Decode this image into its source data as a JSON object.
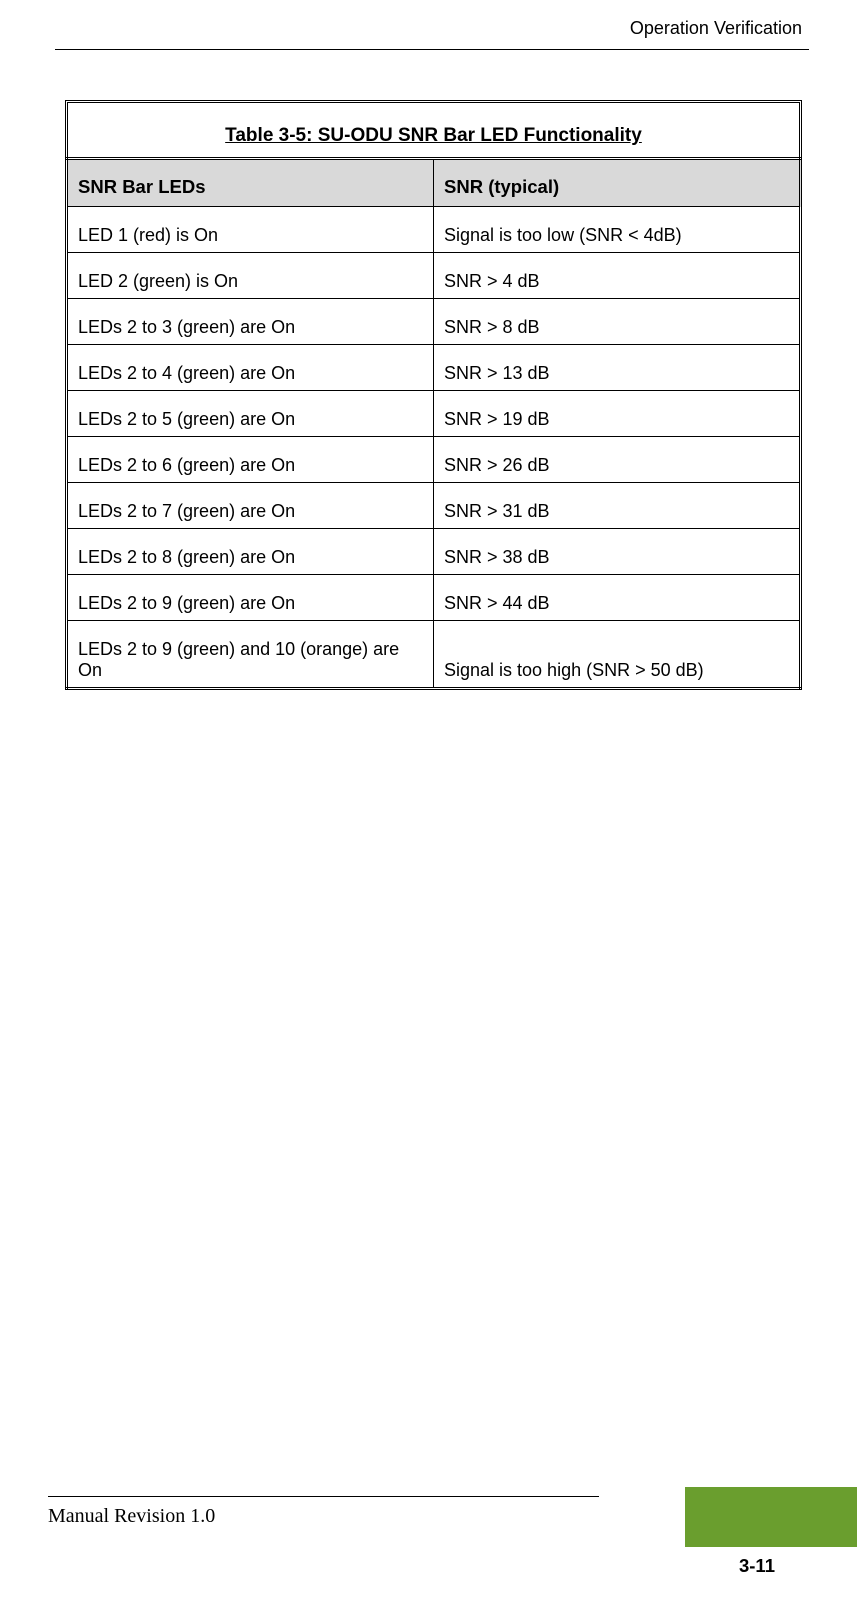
{
  "header": {
    "section_title": "Operation Verification"
  },
  "table": {
    "type": "table",
    "caption": "Table 3-5: SU-ODU SNR Bar LED Functionality",
    "columns": [
      "SNR Bar LEDs",
      "SNR (typical)"
    ],
    "rows": [
      [
        "LED 1 (red) is On",
        "Signal is too low (SNR < 4dB)"
      ],
      [
        "LED 2 (green) is On",
        "SNR > 4 dB"
      ],
      [
        "LEDs 2 to 3 (green) are On",
        "SNR > 8 dB"
      ],
      [
        "LEDs 2 to 4 (green) are On",
        "SNR > 13 dB"
      ],
      [
        "LEDs 2 to 5 (green) are On",
        "SNR > 19 dB"
      ],
      [
        "LEDs 2 to 6 (green) are On",
        "SNR > 26 dB"
      ],
      [
        "LEDs 2 to 7 (green) are On",
        "SNR > 31 dB"
      ],
      [
        "LEDs 2 to 8 (green) are On",
        "SNR > 38 dB"
      ],
      [
        "LEDs 2 to 9 (green) are On",
        "SNR > 44 dB"
      ],
      [
        "LEDs 2 to 9 (green) and 10 (orange) are On",
        "Signal is too high (SNR > 50 dB)"
      ]
    ],
    "header_bg_color": "#d9d9d9",
    "border_color": "#000000",
    "caption_fontsize": 19,
    "header_fontsize": 18.5,
    "cell_fontsize": 18
  },
  "footer": {
    "revision_text": "Manual Revision 1.0",
    "page_number": "3-11",
    "accent_color": "#6a9e2e"
  }
}
